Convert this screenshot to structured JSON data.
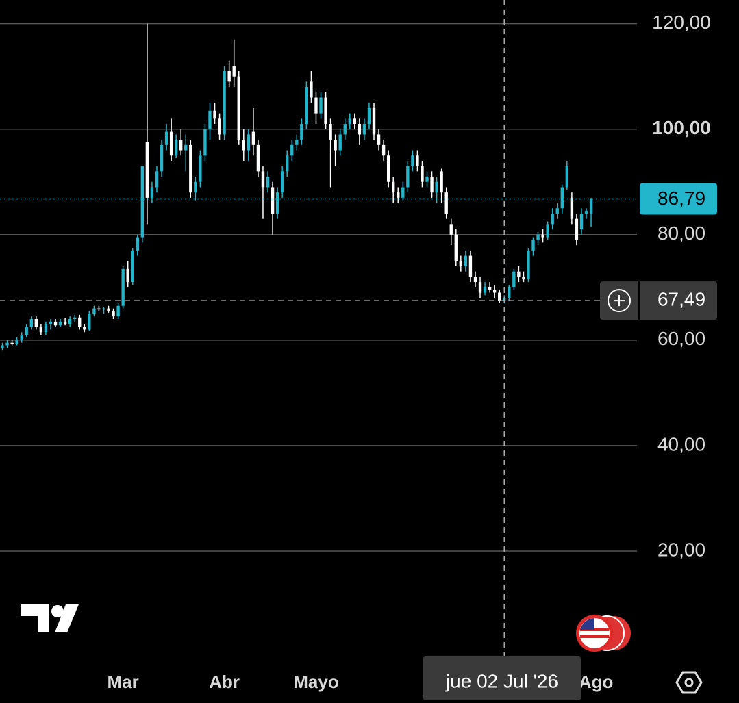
{
  "chart_data": {
    "type": "candlestick",
    "up_color": "#22b5cc",
    "down_color": "#ffffff",
    "grid": true,
    "xlim": [
      -0.5,
      131.5
    ],
    "ylim": [
      0,
      124.5
    ],
    "yticks": [
      {
        "value": 20,
        "label": "20,00"
      },
      {
        "value": 40,
        "label": "40,00"
      },
      {
        "value": 60,
        "label": "60,00"
      },
      {
        "value": 80,
        "label": "80,00"
      },
      {
        "value": 100,
        "label": "100,00"
      },
      {
        "value": 120,
        "label": "120,00"
      }
    ],
    "xticks": [
      {
        "value": 25,
        "label": "Mar"
      },
      {
        "value": 46,
        "label": "Abr"
      },
      {
        "value": 65,
        "label": "Mayo"
      },
      {
        "value": 123,
        "label": "Ago"
      }
    ],
    "open": [
      58.5,
      59,
      59.5,
      59.3,
      60,
      61,
      62.5,
      64,
      62.5,
      61.5,
      63,
      63.5,
      62.8,
      63.5,
      63,
      64,
      64.3,
      62.5,
      62,
      65,
      66,
      65.8,
      66,
      65.5,
      64.5,
      66.5,
      73.5,
      71,
      77,
      79.5,
      97.5,
      87,
      89,
      92,
      97,
      99.5,
      95,
      98,
      96,
      97,
      88,
      90,
      95,
      100,
      103.5,
      102,
      99,
      111,
      112,
      110,
      98,
      96,
      99.5,
      97,
      92,
      89,
      89,
      84,
      88,
      92,
      95,
      97,
      98,
      101,
      109,
      106,
      103,
      106,
      101,
      98,
      96,
      99,
      101,
      102,
      101,
      99,
      101,
      104,
      99,
      97,
      95,
      90,
      88,
      87,
      89,
      93,
      95,
      93,
      90,
      91,
      88,
      92,
      88,
      82,
      80,
      75,
      74,
      76,
      72,
      71,
      69,
      70,
      69.5,
      69,
      67.5,
      68,
      70,
      73,
      72,
      71.5,
      77,
      79,
      80,
      79.5,
      82,
      84,
      85,
      89,
      87,
      83,
      81,
      84,
      84
    ],
    "high": [
      59.5,
      60,
      60,
      60.5,
      61.5,
      63,
      64.5,
      64.5,
      63,
      63.5,
      64,
      64,
      64,
      64.2,
      64.5,
      64.8,
      64.8,
      63,
      65.5,
      66.5,
      66.5,
      66.3,
      66.5,
      66,
      67,
      74,
      75,
      77.5,
      80,
      93,
      120,
      90,
      93,
      98,
      101,
      102,
      99,
      100,
      99,
      98,
      91,
      96,
      101,
      105,
      105,
      103,
      112,
      113,
      117,
      111,
      100,
      100,
      104,
      98,
      93,
      92,
      90,
      89,
      93,
      96,
      98,
      99,
      102,
      109,
      111,
      107,
      107,
      107,
      102,
      99,
      100,
      102,
      103,
      103,
      102,
      102,
      105,
      105,
      100,
      98,
      96,
      91,
      89,
      90,
      94,
      96,
      96,
      94,
      92,
      92,
      91,
      92.5,
      89,
      83,
      81,
      76,
      77,
      77,
      73,
      72,
      71,
      71,
      70.5,
      69.5,
      68.5,
      70.5,
      73.5,
      74,
      73,
      77.5,
      79.5,
      80.5,
      81,
      82.5,
      85,
      86,
      89.5,
      94,
      88,
      84,
      85,
      85,
      87
    ],
    "low": [
      58,
      58.5,
      59,
      59,
      59.5,
      60.5,
      62,
      62,
      61,
      61,
      62,
      62.5,
      62.5,
      62.8,
      62.5,
      63.5,
      62,
      61.5,
      61.8,
      64.5,
      65.5,
      65,
      65.2,
      64,
      64,
      66,
      70,
      70.5,
      76,
      78.5,
      82,
      86,
      88,
      91,
      96,
      94,
      94.5,
      95,
      92,
      87,
      86.5,
      89,
      94,
      98,
      101,
      98,
      98,
      108,
      108,
      97,
      94,
      94,
      95,
      91,
      83,
      88,
      80,
      83,
      87,
      91,
      94,
      96,
      97,
      100,
      105,
      101,
      102,
      100,
      89,
      93,
      95,
      98,
      100,
      100,
      97,
      98,
      100,
      98,
      96,
      94,
      89,
      86,
      86,
      86.5,
      88,
      92,
      92,
      89,
      89,
      87,
      86,
      86,
      83,
      78,
      74,
      73,
      73,
      71,
      70,
      68,
      68.5,
      69,
      68,
      67,
      67,
      67.5,
      69.5,
      71,
      71,
      71,
      76,
      78,
      78.5,
      79,
      81,
      83,
      84,
      88.5,
      82,
      78,
      80,
      83,
      81.5
    ],
    "close": [
      59,
      59.5,
      59.3,
      60,
      61,
      62.5,
      64,
      62.5,
      61.5,
      63,
      63.5,
      62.8,
      63.5,
      63,
      64,
      64.3,
      62.5,
      62,
      65,
      66,
      65.8,
      66,
      65.5,
      64.5,
      66.5,
      73.5,
      71,
      77,
      79.5,
      93,
      87,
      89,
      92,
      97,
      99.5,
      95,
      98,
      96,
      97,
      88,
      90,
      95,
      100,
      103.5,
      102,
      99,
      111,
      109,
      110,
      98,
      96,
      99,
      97,
      92,
      89,
      91,
      84,
      88,
      92,
      95,
      97,
      98,
      101,
      108,
      106,
      103,
      106,
      101,
      98,
      96,
      99,
      101,
      102,
      101,
      99,
      101,
      104,
      99,
      97,
      95,
      90,
      88,
      87,
      89,
      93,
      95,
      93,
      90,
      91,
      88,
      90,
      88,
      84,
      80,
      75,
      74,
      76,
      72,
      71,
      69,
      70,
      69.5,
      69,
      67.5,
      68,
      70,
      73,
      72,
      71.5,
      77,
      79,
      80,
      79.5,
      82,
      84,
      85,
      89,
      93,
      83,
      79,
      84,
      84.5,
      86.79
    ],
    "last_price": {
      "value": 86.79,
      "label": "86,79"
    },
    "crosshair": {
      "x": 104,
      "y": 67.49,
      "y_label": "67,49",
      "x_label": "jue 02 Jul '26"
    }
  }
}
